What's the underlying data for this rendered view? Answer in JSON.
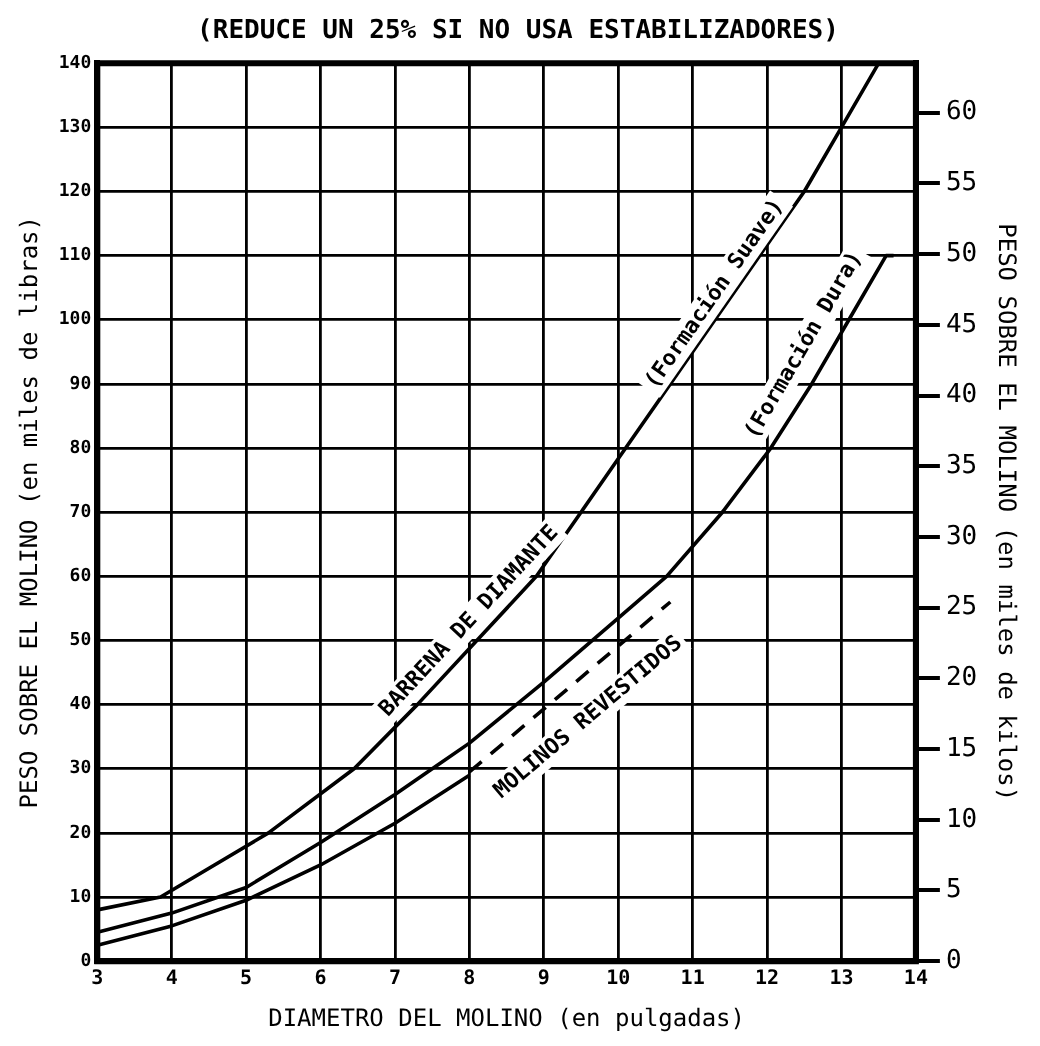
{
  "chart_data": {
    "type": "line",
    "title": "(REDUCE UN 25% SI NO USA ESTABILIZADORES)",
    "xlabel": "DIAMETRO DEL MOLINO (en pulgadas)",
    "ylabel": "PESO SOBRE EL MOLINO (en miles de libras)",
    "y2label": "PESO SOBRE EL MOLINO (en miles de kilos)",
    "series": [
      {
        "color": "#000000",
        "x": [
          3,
          3.85,
          5.3,
          6.45,
          7.3,
          8.1,
          8.9,
          9.5,
          10.1,
          10.7,
          11.3,
          11.9,
          12.5,
          13.0,
          13.5
        ],
        "values": [
          8,
          10,
          20,
          30,
          40,
          50,
          60,
          70,
          80,
          90,
          100,
          110,
          120,
          130,
          140
        ]
      },
      {
        "color": "#000000",
        "x": [
          3,
          4,
          5,
          6,
          7,
          8,
          9,
          10,
          10.65,
          11.4,
          12.05,
          12.6,
          13.1,
          13.6,
          13.7
        ],
        "values": [
          4.5,
          7.5,
          11.5,
          18.5,
          26,
          34,
          43.5,
          53.5,
          60,
          70,
          80,
          90,
          100,
          110,
          110
        ]
      },
      {
        "color": "#000000",
        "x": [
          3,
          4,
          5,
          6,
          7,
          8
        ],
        "values": [
          2.5,
          5.5,
          9.5,
          15,
          21.5,
          29
        ]
      },
      {
        "color": "#000000",
        "line_style": "dashed",
        "x": [
          8,
          10.7
        ],
        "values": [
          29.5,
          56
        ]
      }
    ],
    "annotations": [
      "BARRENA DE DIAMANTE",
      "(Formación Suave)",
      "(Formación Dura)",
      "MOLINOS REVESTIDOS"
    ],
    "xlim": [
      3,
      14
    ],
    "xticks": [
      3,
      4,
      5,
      6,
      7,
      8,
      9,
      10,
      11,
      12,
      13,
      14
    ],
    "ylim": [
      0,
      140
    ],
    "yticks": [
      0,
      10,
      20,
      30,
      40,
      50,
      60,
      70,
      80,
      90,
      100,
      110,
      120,
      130,
      140
    ],
    "y2lim": [
      0,
      63.5
    ],
    "y2ticks": [
      0,
      5,
      10,
      15,
      20,
      25,
      30,
      35,
      40,
      45,
      50,
      55,
      60
    ],
    "grid": true,
    "legend": false,
    "marker": "none",
    "line_style": "solid"
  }
}
